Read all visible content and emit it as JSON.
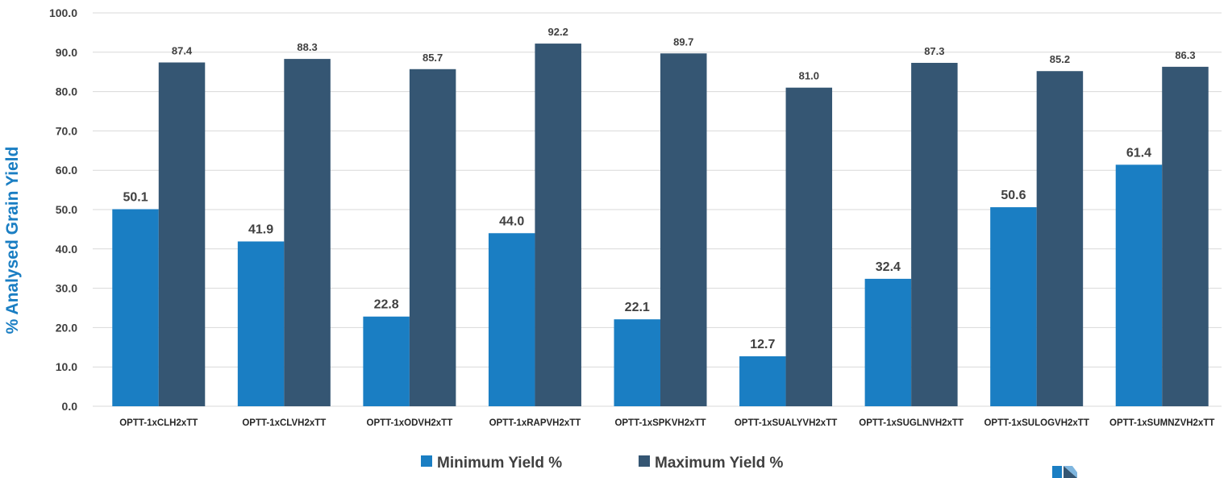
{
  "chart_data": {
    "type": "bar",
    "title": "",
    "xlabel": "",
    "ylabel": "% Analysed Grain Yield",
    "ylim": [
      0,
      100
    ],
    "yticks": [
      "0.0",
      "10.0",
      "20.0",
      "30.0",
      "40.0",
      "50.0",
      "60.0",
      "70.0",
      "80.0",
      "90.0",
      "100.0"
    ],
    "grid": true,
    "legend_position": "bottom",
    "categories": [
      "OPTT-1xCLH2xTT",
      "OPTT-1xCLVH2xTT",
      "OPTT-1xODVH2xTT",
      "OPTT-1xRAPVH2xTT",
      "OPTT-1xSPKVH2xTT",
      "OPTT-1xSUALYVH2xTT",
      "OPTT-1xSUGLNVH2xTT",
      "OPTT-1xSULOGVH2xTT",
      "OPTT-1xSUMNZVH2xTT"
    ],
    "series": [
      {
        "name": "Minimum Yield %",
        "color": "#1a7ec3",
        "values": [
          50.1,
          41.9,
          22.8,
          44.0,
          22.1,
          12.7,
          32.4,
          50.6,
          61.4
        ],
        "labels": [
          "50.1",
          "41.9",
          "22.8",
          "44.0",
          "22.1",
          "12.7",
          "32.4",
          "50.6",
          "61.4"
        ]
      },
      {
        "name": "Maximum Yield %",
        "color": "#355673",
        "values": [
          87.4,
          88.3,
          85.7,
          92.2,
          89.7,
          81.0,
          87.3,
          85.2,
          86.3
        ],
        "labels": [
          "87.4",
          "88.3",
          "85.7",
          "92.2",
          "89.7",
          "81.0",
          "87.3",
          "85.2",
          "86.3"
        ]
      }
    ],
    "ylabel_color": "#1a7ec3",
    "grid_color": "#d9d9d9",
    "logo_icon": "company-logo-icon"
  }
}
